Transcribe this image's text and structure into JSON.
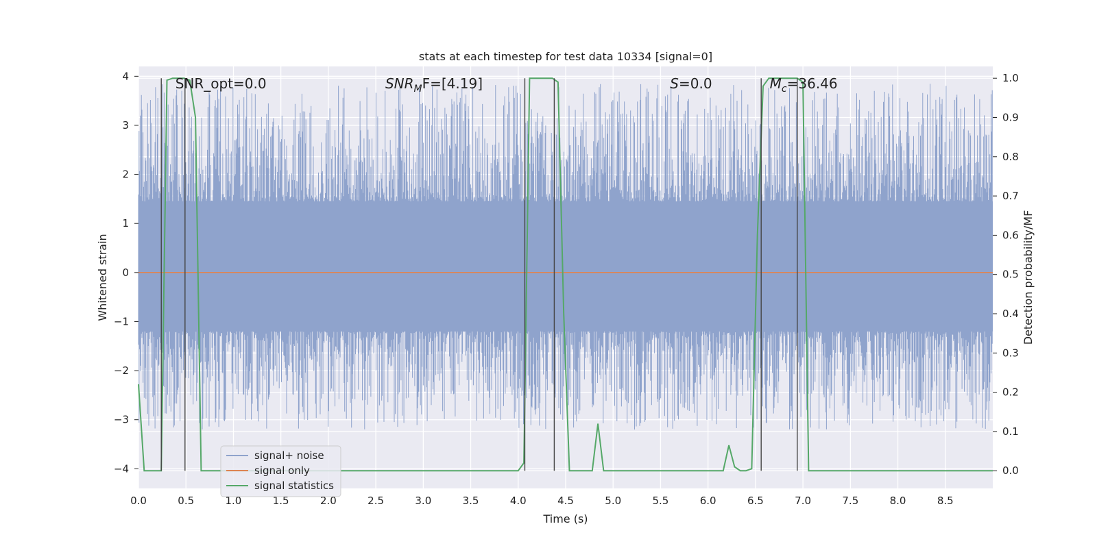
{
  "chart_data": {
    "type": "line",
    "title": "stats at each timestep for test data 10334 [signal=0]",
    "xlabel": "Time (s)",
    "ylabel": "Whitened strain",
    "y2label": "Detection probability/MF",
    "xlim": [
      0.0,
      9.0
    ],
    "ylim": [
      -4.4,
      4.2
    ],
    "y2lim": [
      -0.045,
      1.03
    ],
    "xticks": [
      "0.0",
      "0.5",
      "1.0",
      "1.5",
      "2.0",
      "2.5",
      "3.0",
      "3.5",
      "4.0",
      "4.5",
      "5.0",
      "5.5",
      "6.0",
      "6.5",
      "7.0",
      "7.5",
      "8.0",
      "8.5"
    ],
    "xtick_values": [
      0.0,
      0.5,
      1.0,
      1.5,
      2.0,
      2.5,
      3.0,
      3.5,
      4.0,
      4.5,
      5.0,
      5.5,
      6.0,
      6.5,
      7.0,
      7.5,
      8.0,
      8.5
    ],
    "yticks": [
      "−4",
      "−3",
      "−2",
      "−1",
      "0",
      "1",
      "2",
      "3",
      "4"
    ],
    "ytick_values": [
      -4,
      -3,
      -2,
      -1,
      0,
      1,
      2,
      3,
      4
    ],
    "y2ticks": [
      "0.0",
      "0.1",
      "0.2",
      "0.3",
      "0.4",
      "0.5",
      "0.6",
      "0.7",
      "0.8",
      "0.9",
      "1.0"
    ],
    "y2tick_values": [
      0.0,
      0.1,
      0.2,
      0.3,
      0.4,
      0.5,
      0.6,
      0.7,
      0.8,
      0.9,
      1.0
    ],
    "grid": true,
    "legend_position": "lower-left",
    "annotations": [
      {
        "text": "SNR_opt=0.0",
        "x": 0.2,
        "y": 3.85
      },
      {
        "text": "SNR_MF=[4.19]",
        "x": 2.6,
        "y": 3.85,
        "main": "SNR",
        "sub": "M",
        "tail": "F=[4.19]"
      },
      {
        "text": "S=0.0",
        "x": 5.6,
        "y": 3.85,
        "main": "S",
        "tail": "=0.0"
      },
      {
        "text": "M_c=36.46",
        "x": 6.65,
        "y": 3.85,
        "main": "M",
        "sub": "c",
        "tail": "=36.46"
      }
    ],
    "noise_band": {
      "core_low": -1.2,
      "core_high": 1.45,
      "spike_low": -3.2,
      "spike_high": 3.85
    },
    "series": [
      {
        "name": "signal+ noise",
        "color": "#8fa3cc",
        "axis": "left"
      },
      {
        "name": "signal only",
        "color": "#dd8452",
        "axis": "left",
        "x": [
          0.0,
          9.0
        ],
        "values": [
          0.0,
          0.0
        ]
      },
      {
        "name": "signal statistics",
        "color": "#55a868",
        "axis": "right",
        "x": [
          0.0,
          0.06,
          0.24,
          0.3,
          0.36,
          0.42,
          0.48,
          0.54,
          0.6,
          0.66,
          4.0,
          4.06,
          4.12,
          4.18,
          4.24,
          4.3,
          4.36,
          4.42,
          4.48,
          4.54,
          4.6,
          4.66,
          4.72,
          4.78,
          4.84,
          4.9,
          4.96,
          6.1,
          6.16,
          6.22,
          6.28,
          6.34,
          6.4,
          6.46,
          6.52,
          6.58,
          6.64,
          6.7,
          6.76,
          6.82,
          6.88,
          6.94,
          7.0,
          7.06,
          7.12,
          9.0
        ],
        "values": [
          0.22,
          0.0,
          0.0,
          0.995,
          1.0,
          1.0,
          1.0,
          0.995,
          0.9,
          0.0,
          0.0,
          0.02,
          1.0,
          1.0,
          1.0,
          1.0,
          1.0,
          0.99,
          0.4,
          0.0,
          0.0,
          0.0,
          0.0,
          0.0,
          0.12,
          0.0,
          0.0,
          0.0,
          0.0,
          0.065,
          0.01,
          0.0,
          0.0,
          0.005,
          0.6,
          0.98,
          1.0,
          1.0,
          1.0,
          1.0,
          1.0,
          1.0,
          0.99,
          0.0,
          0.0,
          0.0
        ]
      }
    ],
    "vertical_lines": [
      {
        "x": 0.24,
        "y2_top": 1.0
      },
      {
        "x": 0.49,
        "y2_top": 1.0
      },
      {
        "x": 4.07,
        "y2_top": 1.0
      },
      {
        "x": 4.38,
        "y2_top": 1.0
      },
      {
        "x": 6.56,
        "y2_top": 1.0
      },
      {
        "x": 6.94,
        "y2_top": 1.0
      }
    ]
  }
}
